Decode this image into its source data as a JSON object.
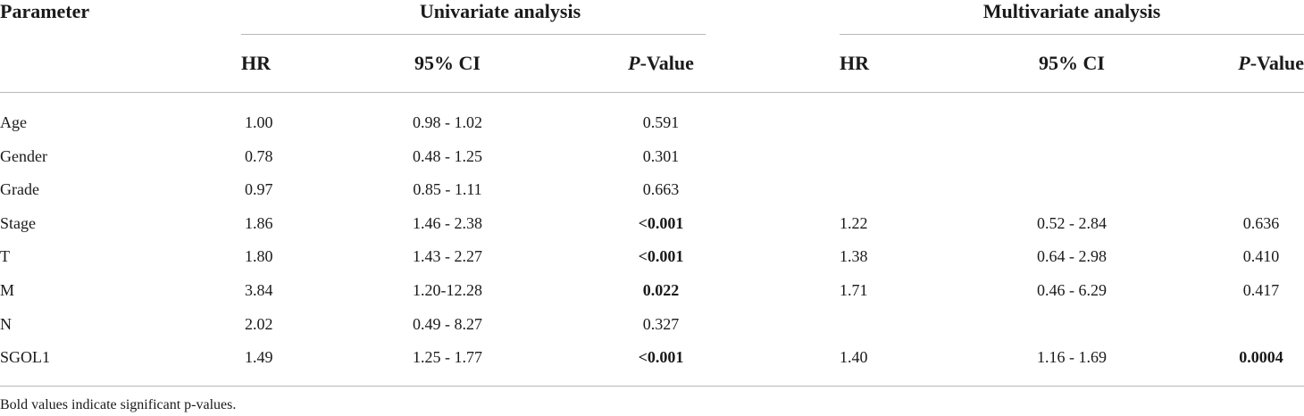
{
  "table": {
    "param_header": "Parameter",
    "groups": {
      "univariate": "Univariate analysis",
      "multivariate": "Multivariate analysis"
    },
    "columns": {
      "hr": "HR",
      "ci": "95% CI",
      "p_prefix": "P",
      "p_suffix": "-Value"
    },
    "rows": [
      {
        "param": "Age",
        "u_hr": "1.00",
        "u_ci": "0.98 - 1.02",
        "u_p": "0.591",
        "u_p_bold": false,
        "m_hr": "",
        "m_ci": "",
        "m_p": "",
        "m_p_bold": false
      },
      {
        "param": "Gender",
        "u_hr": "0.78",
        "u_ci": "0.48 - 1.25",
        "u_p": "0.301",
        "u_p_bold": false,
        "m_hr": "",
        "m_ci": "",
        "m_p": "",
        "m_p_bold": false
      },
      {
        "param": "Grade",
        "u_hr": "0.97",
        "u_ci": "0.85 - 1.11",
        "u_p": "0.663",
        "u_p_bold": false,
        "m_hr": "",
        "m_ci": "",
        "m_p": "",
        "m_p_bold": false
      },
      {
        "param": "Stage",
        "u_hr": "1.86",
        "u_ci": "1.46 - 2.38",
        "u_p": "<0.001",
        "u_p_bold": true,
        "m_hr": "1.22",
        "m_ci": "0.52 - 2.84",
        "m_p": "0.636",
        "m_p_bold": false
      },
      {
        "param": "T",
        "u_hr": "1.80",
        "u_ci": "1.43 - 2.27",
        "u_p": "<0.001",
        "u_p_bold": true,
        "m_hr": "1.38",
        "m_ci": "0.64 - 2.98",
        "m_p": "0.410",
        "m_p_bold": false
      },
      {
        "param": "M",
        "u_hr": "3.84",
        "u_ci": "1.20-12.28",
        "u_p": "0.022",
        "u_p_bold": true,
        "m_hr": "1.71",
        "m_ci": "0.46 - 6.29",
        "m_p": "0.417",
        "m_p_bold": false
      },
      {
        "param": "N",
        "u_hr": "2.02",
        "u_ci": "0.49 - 8.27",
        "u_p": "0.327",
        "u_p_bold": false,
        "m_hr": "",
        "m_ci": "",
        "m_p": "",
        "m_p_bold": false
      },
      {
        "param": "SGOL1",
        "u_hr": "1.49",
        "u_ci": "1.25 - 1.77",
        "u_p": "<0.001",
        "u_p_bold": true,
        "m_hr": "1.40",
        "m_ci": "1.16 - 1.69",
        "m_p": "0.0004",
        "m_p_bold": true
      }
    ],
    "footnote": "Bold values indicate significant p-values."
  }
}
